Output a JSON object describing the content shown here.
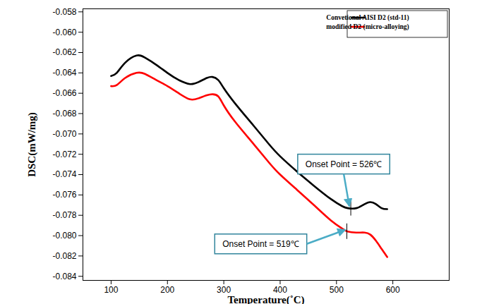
{
  "chart_data": {
    "type": "line",
    "xlabel": "Temperature(˚C)",
    "ylabel": "DSC(mW/mg)",
    "xlim": [
      50,
      700
    ],
    "ylim": [
      -0.0844,
      -0.0577
    ],
    "xticks": [
      100,
      200,
      300,
      400,
      500,
      600
    ],
    "yticks": [
      {
        "value": -0.084,
        "label": "-0.084"
      },
      -0.082,
      {
        "value": -0.08,
        "label": "-0.080"
      },
      -0.078,
      -0.076,
      -0.074,
      -0.072,
      {
        "value": -0.07,
        "label": "-0.070"
      },
      -0.068,
      -0.066,
      -0.064,
      -0.062,
      {
        "value": -0.06,
        "label": "-0.060"
      },
      -0.058
    ],
    "legend": "upper right",
    "x": [
      100,
      110,
      125,
      145,
      160,
      180,
      200,
      220,
      240,
      255,
      270,
      280,
      290,
      300,
      320,
      350,
      380,
      400,
      430,
      460,
      490,
      510,
      520,
      535,
      550,
      560,
      570,
      580,
      590
    ],
    "series": [
      {
        "name": "Convetional AISI D2 (std-11)",
        "color": "#000000",
        "values": [
          -0.0643,
          -0.064,
          -0.063,
          -0.0623,
          -0.0625,
          -0.0632,
          -0.064,
          -0.0647,
          -0.0651,
          -0.0649,
          -0.0645,
          -0.0644,
          -0.0647,
          -0.0655,
          -0.067,
          -0.069,
          -0.071,
          -0.0722,
          -0.0737,
          -0.0751,
          -0.0764,
          -0.0771,
          -0.0773,
          -0.0773,
          -0.0769,
          -0.0767,
          -0.0769,
          -0.0773,
          -0.0774
        ]
      },
      {
        "name": "modified D2 (micro-alloying)",
        "color": "#ff0000",
        "values": [
          -0.0653,
          -0.0652,
          -0.0645,
          -0.064,
          -0.0641,
          -0.0647,
          -0.0653,
          -0.066,
          -0.0666,
          -0.0665,
          -0.0662,
          -0.0661,
          -0.0663,
          -0.0672,
          -0.0688,
          -0.0708,
          -0.0728,
          -0.074,
          -0.0755,
          -0.077,
          -0.0785,
          -0.0793,
          -0.0796,
          -0.0797,
          -0.0797,
          -0.0799,
          -0.0805,
          -0.0813,
          -0.0821
        ]
      }
    ],
    "annotations": [
      {
        "text": "Onset Point = 526℃",
        "x": 526,
        "y": -0.0773
      },
      {
        "text": "Onset Point = 519℃",
        "x": 519,
        "y": -0.0796
      }
    ]
  }
}
